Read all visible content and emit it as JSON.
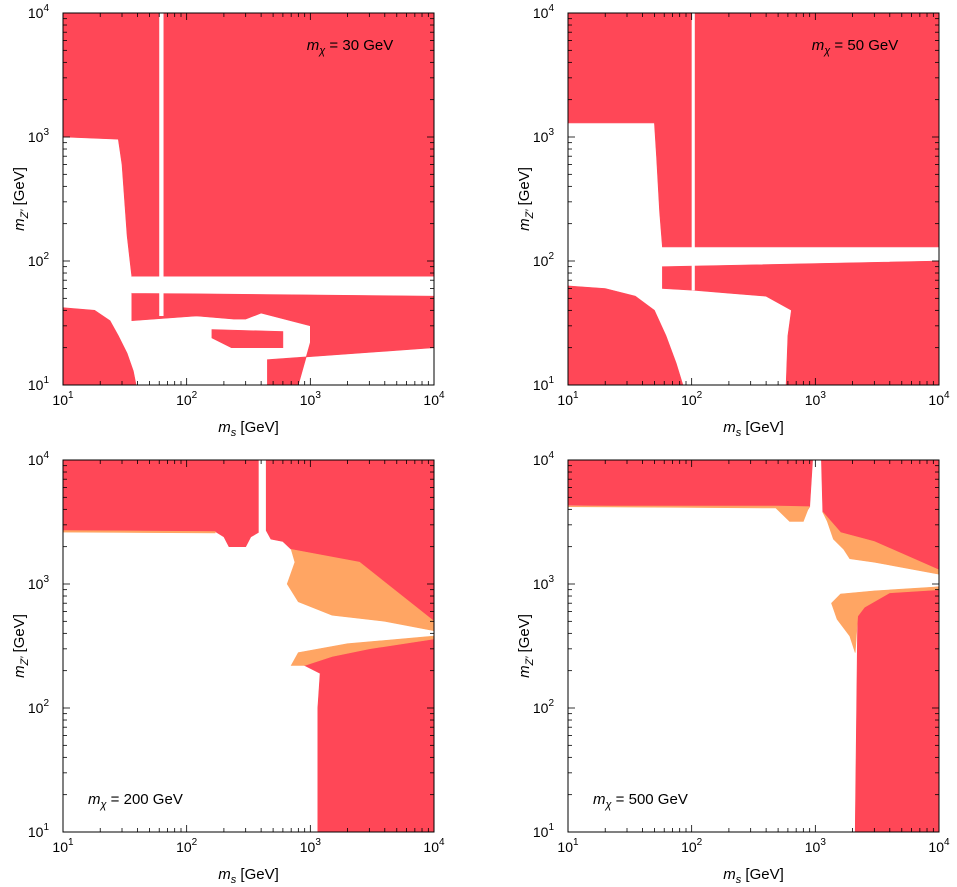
{
  "colors": {
    "excluded": "#ff4757",
    "secondary": "#ffa563",
    "background": "#ffffff",
    "axis": "#000000"
  },
  "chart_data": [
    {
      "type": "heatmap",
      "annotation": {
        "prefix": "m",
        "subscript": "χ",
        "suffix": " = 30 GeV"
      },
      "xlabel": {
        "base": "m",
        "sub": "s",
        "unit": " [GeV]"
      },
      "ylabel": {
        "base": "m",
        "sub": "Z′",
        "unit": " [GeV]"
      },
      "xscale": "log",
      "yscale": "log",
      "xlim": [
        10,
        10000
      ],
      "ylim": [
        10,
        10000
      ],
      "xticks": [
        "10",
        "10",
        "10",
        "10"
      ],
      "xtick_exp": [
        "1",
        "2",
        "3",
        "4"
      ],
      "yticks": [
        "10",
        "10",
        "10",
        "10"
      ],
      "ytick_exp": [
        "1",
        "2",
        "3",
        "4"
      ],
      "regions": [
        {
          "name": "excluded",
          "color": "#ff4757",
          "polygon": [
            [
              10,
              1000
            ],
            [
              28,
              960
            ],
            [
              30,
              600
            ],
            [
              33,
              160
            ],
            [
              35,
              95
            ],
            [
              36,
              75
            ],
            [
              10000,
              75
            ],
            [
              10000,
              10000
            ],
            [
              10,
              10000
            ]
          ]
        },
        {
          "name": "excluded",
          "color": "#ff4757",
          "polygon": [
            [
              36,
              55
            ],
            [
              10000,
              52
            ],
            [
              10000,
              20
            ],
            [
              450,
              16
            ],
            [
              450,
              10
            ],
            [
              800,
              10
            ],
            [
              1000,
              22
            ],
            [
              1000,
              30
            ],
            [
              400,
              38
            ],
            [
              300,
              34
            ],
            [
              240,
              34
            ],
            [
              120,
              36
            ],
            [
              36,
              33
            ]
          ]
        },
        {
          "name": "excluded",
          "color": "#ff4757",
          "polygon": [
            [
              10,
              42
            ],
            [
              18,
              40
            ],
            [
              24,
              33
            ],
            [
              28,
              25
            ],
            [
              33,
              18
            ],
            [
              37,
              13
            ],
            [
              39,
              10
            ],
            [
              10,
              10
            ]
          ]
        },
        {
          "name": "excluded",
          "color": "#ff4757",
          "polygon": [
            [
              160,
              28
            ],
            [
              600,
              27
            ],
            [
              600,
              20
            ],
            [
              230,
              20
            ],
            [
              160,
              24
            ]
          ]
        }
      ],
      "white_gaps": [
        {
          "xrange": [
            60,
            65
          ],
          "yrange": [
            36,
            10000
          ]
        },
        {
          "xrange": [
            36,
            10000
          ],
          "yrange": [
            55,
            75
          ]
        }
      ]
    },
    {
      "type": "heatmap",
      "annotation": {
        "prefix": "m",
        "subscript": "χ",
        "suffix": " = 50 GeV"
      },
      "xlabel": {
        "base": "m",
        "sub": "s",
        "unit": " [GeV]"
      },
      "ylabel": {
        "base": "m",
        "sub": "Z′",
        "unit": " [GeV]"
      },
      "xscale": "log",
      "yscale": "log",
      "xlim": [
        10,
        10000
      ],
      "ylim": [
        10,
        10000
      ],
      "xticks": [
        "10",
        "10",
        "10",
        "10"
      ],
      "xtick_exp": [
        "1",
        "2",
        "3",
        "4"
      ],
      "yticks": [
        "10",
        "10",
        "10",
        "10"
      ],
      "ytick_exp": [
        "1",
        "2",
        "3",
        "4"
      ],
      "regions": [
        {
          "name": "excluded",
          "color": "#ff4757",
          "polygon": [
            [
              10,
              1300
            ],
            [
              50,
              1300
            ],
            [
              52,
              700
            ],
            [
              55,
              250
            ],
            [
              58,
              130
            ],
            [
              10000,
              130
            ],
            [
              10000,
              10000
            ],
            [
              10,
              10000
            ]
          ]
        },
        {
          "name": "excluded",
          "color": "#ff4757",
          "polygon": [
            [
              58,
              90
            ],
            [
              10000,
              100
            ],
            [
              10000,
              10
            ],
            [
              580,
              10
            ],
            [
              600,
              25
            ],
            [
              640,
              40
            ],
            [
              400,
              52
            ],
            [
              200,
              55
            ],
            [
              105,
              58
            ],
            [
              58,
              60
            ]
          ]
        },
        {
          "name": "excluded",
          "color": "#ff4757",
          "polygon": [
            [
              10,
              63
            ],
            [
              20,
              60
            ],
            [
              35,
              52
            ],
            [
              50,
              40
            ],
            [
              62,
              25
            ],
            [
              75,
              15
            ],
            [
              85,
              10
            ],
            [
              10,
              10
            ]
          ]
        }
      ],
      "white_gaps": [
        {
          "xrange": [
            100,
            106
          ],
          "yrange": [
            58,
            10000
          ]
        }
      ]
    },
    {
      "type": "heatmap",
      "annotation": {
        "prefix": "m",
        "subscript": "χ",
        "suffix": " = 200 GeV"
      },
      "xlabel": {
        "base": "m",
        "sub": "s",
        "unit": " [GeV]"
      },
      "ylabel": {
        "base": "m",
        "sub": "Z′",
        "unit": " [GeV]"
      },
      "xscale": "log",
      "yscale": "log",
      "xlim": [
        10,
        10000
      ],
      "ylim": [
        10,
        10000
      ],
      "xticks": [
        "10",
        "10",
        "10",
        "10"
      ],
      "xtick_exp": [
        "1",
        "2",
        "3",
        "4"
      ],
      "yticks": [
        "10",
        "10",
        "10",
        "10"
      ],
      "ytick_exp": [
        "1",
        "2",
        "3",
        "4"
      ],
      "regions": [
        {
          "name": "excluded",
          "color": "#ff4757",
          "polygon": [
            [
              10,
              2700
            ],
            [
              170,
              2650
            ],
            [
              200,
              2400
            ],
            [
              220,
              2000
            ],
            [
              300,
              2000
            ],
            [
              330,
              2400
            ],
            [
              380,
              2600
            ],
            [
              380,
              10000
            ],
            [
              10,
              10000
            ]
          ]
        },
        {
          "name": "excluded",
          "color": "#ff4757",
          "polygon": [
            [
              440,
              10000
            ],
            [
              440,
              2700
            ],
            [
              480,
              2300
            ],
            [
              600,
              2200
            ],
            [
              700,
              1900
            ],
            [
              2500,
              1500
            ],
            [
              10000,
              500
            ],
            [
              10000,
              10000
            ]
          ]
        },
        {
          "name": "secondary",
          "color": "#ffa563",
          "polygon": [
            [
              170,
              2650
            ],
            [
              10,
              2700
            ],
            [
              10,
              2620
            ],
            [
              170,
              2580
            ]
          ]
        },
        {
          "name": "secondary",
          "color": "#ffa563",
          "polygon": [
            [
              700,
              1900
            ],
            [
              2500,
              1500
            ],
            [
              10000,
              500
            ],
            [
              10000,
              420
            ],
            [
              4000,
              500
            ],
            [
              1500,
              560
            ],
            [
              800,
              720
            ],
            [
              650,
              1000
            ],
            [
              750,
              1500
            ]
          ]
        },
        {
          "name": "excluded",
          "color": "#ff4757",
          "polygon": [
            [
              10000,
              360
            ],
            [
              3000,
              300
            ],
            [
              1500,
              260
            ],
            [
              900,
              220
            ],
            [
              1200,
              190
            ],
            [
              1150,
              100
            ],
            [
              1150,
              10
            ],
            [
              10000,
              10
            ]
          ]
        },
        {
          "name": "secondary",
          "color": "#ffa563",
          "polygon": [
            [
              10000,
              360
            ],
            [
              3000,
              300
            ],
            [
              1500,
              260
            ],
            [
              900,
              220
            ],
            [
              700,
              220
            ],
            [
              800,
              280
            ],
            [
              2000,
              330
            ],
            [
              10000,
              380
            ]
          ]
        }
      ],
      "white_gaps": []
    },
    {
      "type": "heatmap",
      "annotation": {
        "prefix": "m",
        "subscript": "χ",
        "suffix": " = 500 GeV"
      },
      "xlabel": {
        "base": "m",
        "sub": "s",
        "unit": " [GeV]"
      },
      "ylabel": {
        "base": "m",
        "sub": "Z′",
        "unit": " [GeV]"
      },
      "xscale": "log",
      "yscale": "log",
      "xlim": [
        10,
        10000
      ],
      "ylim": [
        10,
        10000
      ],
      "xticks": [
        "10",
        "10",
        "10",
        "10"
      ],
      "xtick_exp": [
        "1",
        "2",
        "3",
        "4"
      ],
      "yticks": [
        "10",
        "10",
        "10",
        "10"
      ],
      "ytick_exp": [
        "1",
        "2",
        "3",
        "4"
      ],
      "regions": [
        {
          "name": "excluded",
          "color": "#ff4757",
          "polygon": [
            [
              10,
              4300
            ],
            [
              500,
              4200
            ],
            [
              600,
              3500
            ],
            [
              800,
              3500
            ],
            [
              900,
              4200
            ],
            [
              950,
              10000
            ],
            [
              10,
              10000
            ]
          ]
        },
        {
          "name": "secondary",
          "color": "#ffa563",
          "polygon": [
            [
              10,
              4200
            ],
            [
              480,
              4100
            ],
            [
              620,
              3200
            ],
            [
              800,
              3200
            ],
            [
              880,
              4100
            ],
            [
              900,
              4200
            ],
            [
              500,
              4250
            ],
            [
              10,
              4250
            ]
          ]
        },
        {
          "name": "excluded",
          "color": "#ff4757",
          "polygon": [
            [
              1120,
              10000
            ],
            [
              1150,
              3800
            ],
            [
              1600,
              2600
            ],
            [
              3000,
              2200
            ],
            [
              10000,
              1300
            ],
            [
              10000,
              10000
            ]
          ]
        },
        {
          "name": "secondary",
          "color": "#ffa563",
          "polygon": [
            [
              1150,
              3800
            ],
            [
              1600,
              2600
            ],
            [
              3000,
              2200
            ],
            [
              10000,
              1300
            ],
            [
              10000,
              1200
            ],
            [
              3000,
              1500
            ],
            [
              1900,
              1600
            ],
            [
              1700,
              1900
            ],
            [
              1400,
              2300
            ],
            [
              1250,
              3200
            ]
          ]
        },
        {
          "name": "excluded",
          "color": "#ff4757",
          "polygon": [
            [
              10000,
              950
            ],
            [
              4000,
              850
            ],
            [
              2500,
              650
            ],
            [
              2200,
              550
            ],
            [
              2100,
              10
            ],
            [
              10000,
              10
            ]
          ]
        },
        {
          "name": "secondary",
          "color": "#ffa563",
          "polygon": [
            [
              10000,
              950
            ],
            [
              3000,
              880
            ],
            [
              1600,
              830
            ],
            [
              1350,
              700
            ],
            [
              1500,
              520
            ],
            [
              1900,
              380
            ],
            [
              2100,
              280
            ],
            [
              2200,
              550
            ],
            [
              2500,
              650
            ],
            [
              4000,
              850
            ],
            [
              10000,
              900
            ]
          ]
        }
      ],
      "white_gaps": []
    }
  ]
}
